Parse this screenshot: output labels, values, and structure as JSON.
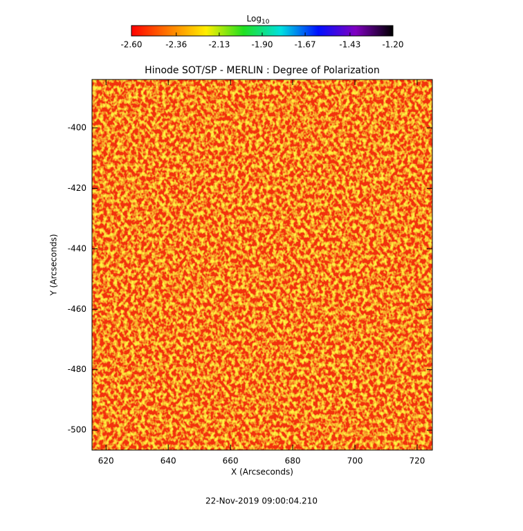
{
  "chart_data": {
    "type": "image",
    "title": "Hinode SOT/SP - MERLIN : Degree of Polarization",
    "colorbar_label": "Log",
    "colorbar_label_sub": "10",
    "colorbar_lim": [
      -2.6,
      -1.2
    ],
    "colorbar_ticks": [
      {
        "value": -2.6,
        "label": "-2.60"
      },
      {
        "value": -2.36,
        "label": "-2.36"
      },
      {
        "value": -2.13,
        "label": "-2.13"
      },
      {
        "value": -1.9,
        "label": "-1.90"
      },
      {
        "value": -1.67,
        "label": "-1.67"
      },
      {
        "value": -1.43,
        "label": "-1.43"
      },
      {
        "value": -1.2,
        "label": "-1.20"
      }
    ],
    "colormap": [
      "#ff0000",
      "#ff7a00",
      "#ffee00",
      "#20e020",
      "#00e0e0",
      "#0010ff",
      "#8000c0",
      "#000000"
    ],
    "x_label": "X (Arcseconds)",
    "y_label": "Y (Arcseconds)",
    "xlim": [
      615.5,
      724.9
    ],
    "xticks": [
      620,
      640,
      660,
      680,
      700,
      720
    ],
    "ylim": [
      -506.6,
      -384
    ],
    "yticks": [
      -400,
      -420,
      -440,
      -460,
      -480,
      -500
    ],
    "timestamp": "22-Nov-2019 09:00:04.210"
  }
}
